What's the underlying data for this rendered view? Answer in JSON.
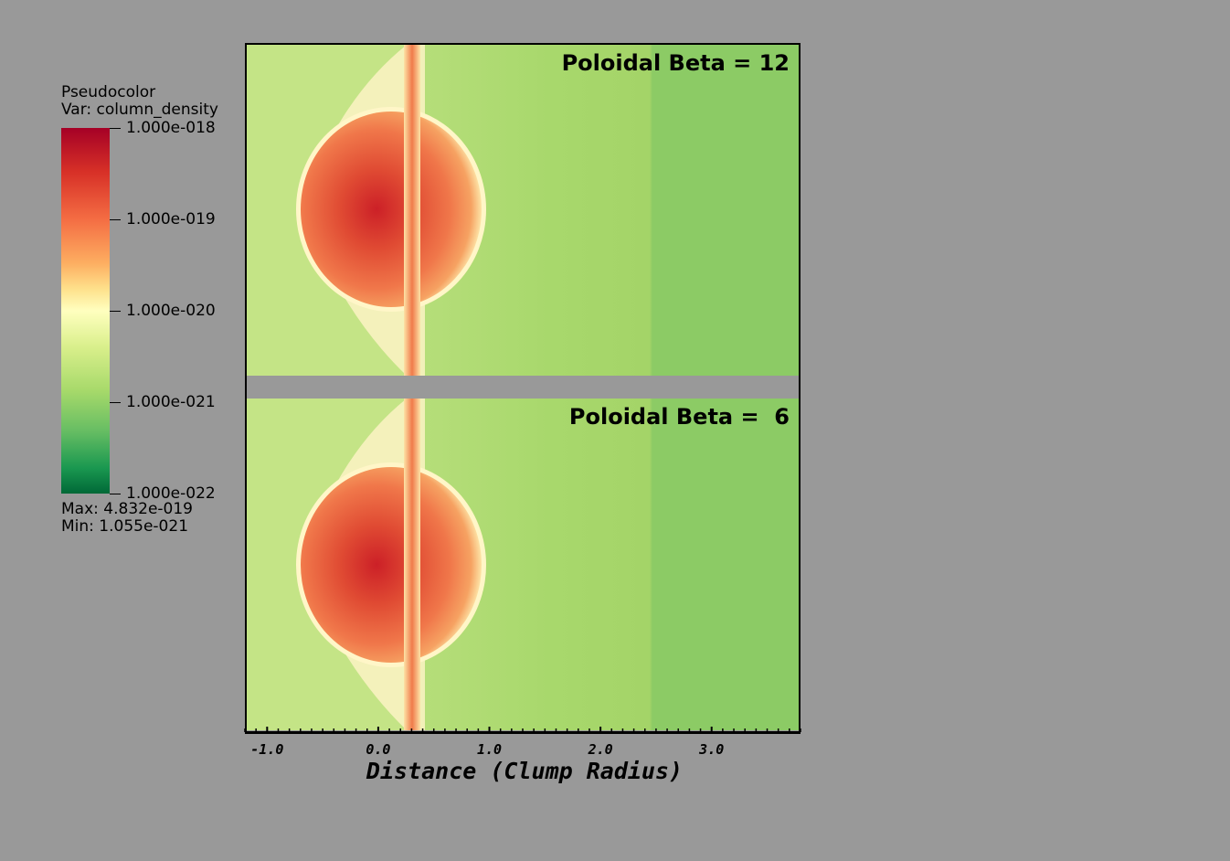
{
  "legend": {
    "line1": "Pseudocolor",
    "line2": "Var: column_density",
    "ticks": [
      "1.000e-018",
      "1.000e-019",
      "1.000e-020",
      "1.000e-021",
      "1.000e-022"
    ],
    "max_label": "Max:  4.832e-019",
    "min_label": "Min:  1.055e-021"
  },
  "panels": [
    {
      "label": "Poloidal Beta = 12"
    },
    {
      "label": "Poloidal Beta =  6"
    }
  ],
  "chart_data": {
    "type": "heatmap",
    "variable": "column_density",
    "colorbar_range": [
      1e-22,
      1e-18
    ],
    "colorbar_scale": "log",
    "data_max": 4.832e-19,
    "data_min": 1.055e-21,
    "xlabel": "Distance (Clump Radius)",
    "x_ticks": [
      "-1.0",
      "0.0",
      "1.0",
      "2.0",
      "3.0"
    ],
    "x_tick_values": [
      -1.0,
      0.0,
      1.0,
      2.0,
      3.0
    ],
    "xlim": [
      -1.2,
      3.8
    ],
    "colors": {
      "background": "#999999",
      "clump_core": "#d73027",
      "ambient": "#a8d86c"
    }
  }
}
